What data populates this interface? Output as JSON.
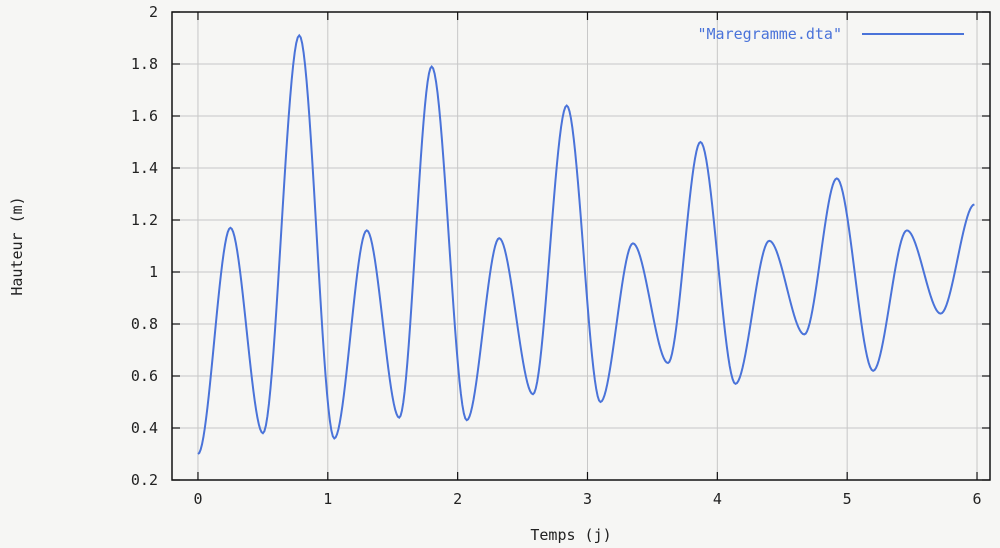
{
  "chart_data": {
    "type": "line",
    "xlabel": "Temps (j)",
    "ylabel": "Hauteur (m)",
    "xlim": [
      -0.2,
      6.1
    ],
    "ylim": [
      0.2,
      2.0
    ],
    "x_ticks": [
      0,
      1,
      2,
      3,
      4,
      5,
      6
    ],
    "x_tick_labels": [
      "0",
      "1",
      "2",
      "3",
      "4",
      "5",
      "6"
    ],
    "y_ticks": [
      0.2,
      0.4,
      0.6,
      0.8,
      1.0,
      1.2,
      1.4,
      1.6,
      1.8,
      2.0
    ],
    "y_tick_labels": [
      "0.2",
      "0.4",
      "0.6",
      "0.8",
      "1",
      "1.2",
      "1.4",
      "1.6",
      "1.8",
      "2"
    ],
    "grid": true,
    "legend_position": "top-right",
    "line_color": "#4a73d9",
    "series": [
      {
        "name": "\"Maregramme.dta\"",
        "x": [
          0.0,
          0.25,
          0.5,
          0.78,
          1.05,
          1.3,
          1.55,
          1.8,
          2.07,
          2.32,
          2.58,
          2.84,
          3.1,
          3.35,
          3.62,
          3.87,
          4.14,
          4.4,
          4.67,
          4.92,
          5.2,
          5.46,
          5.72,
          5.98
        ],
        "values": [
          0.3,
          1.17,
          0.38,
          1.91,
          0.36,
          1.16,
          0.44,
          1.79,
          0.43,
          1.13,
          0.53,
          1.64,
          0.5,
          1.11,
          0.65,
          1.5,
          0.57,
          1.12,
          0.76,
          1.36,
          0.62,
          1.16,
          0.84,
          1.26
        ]
      }
    ]
  }
}
